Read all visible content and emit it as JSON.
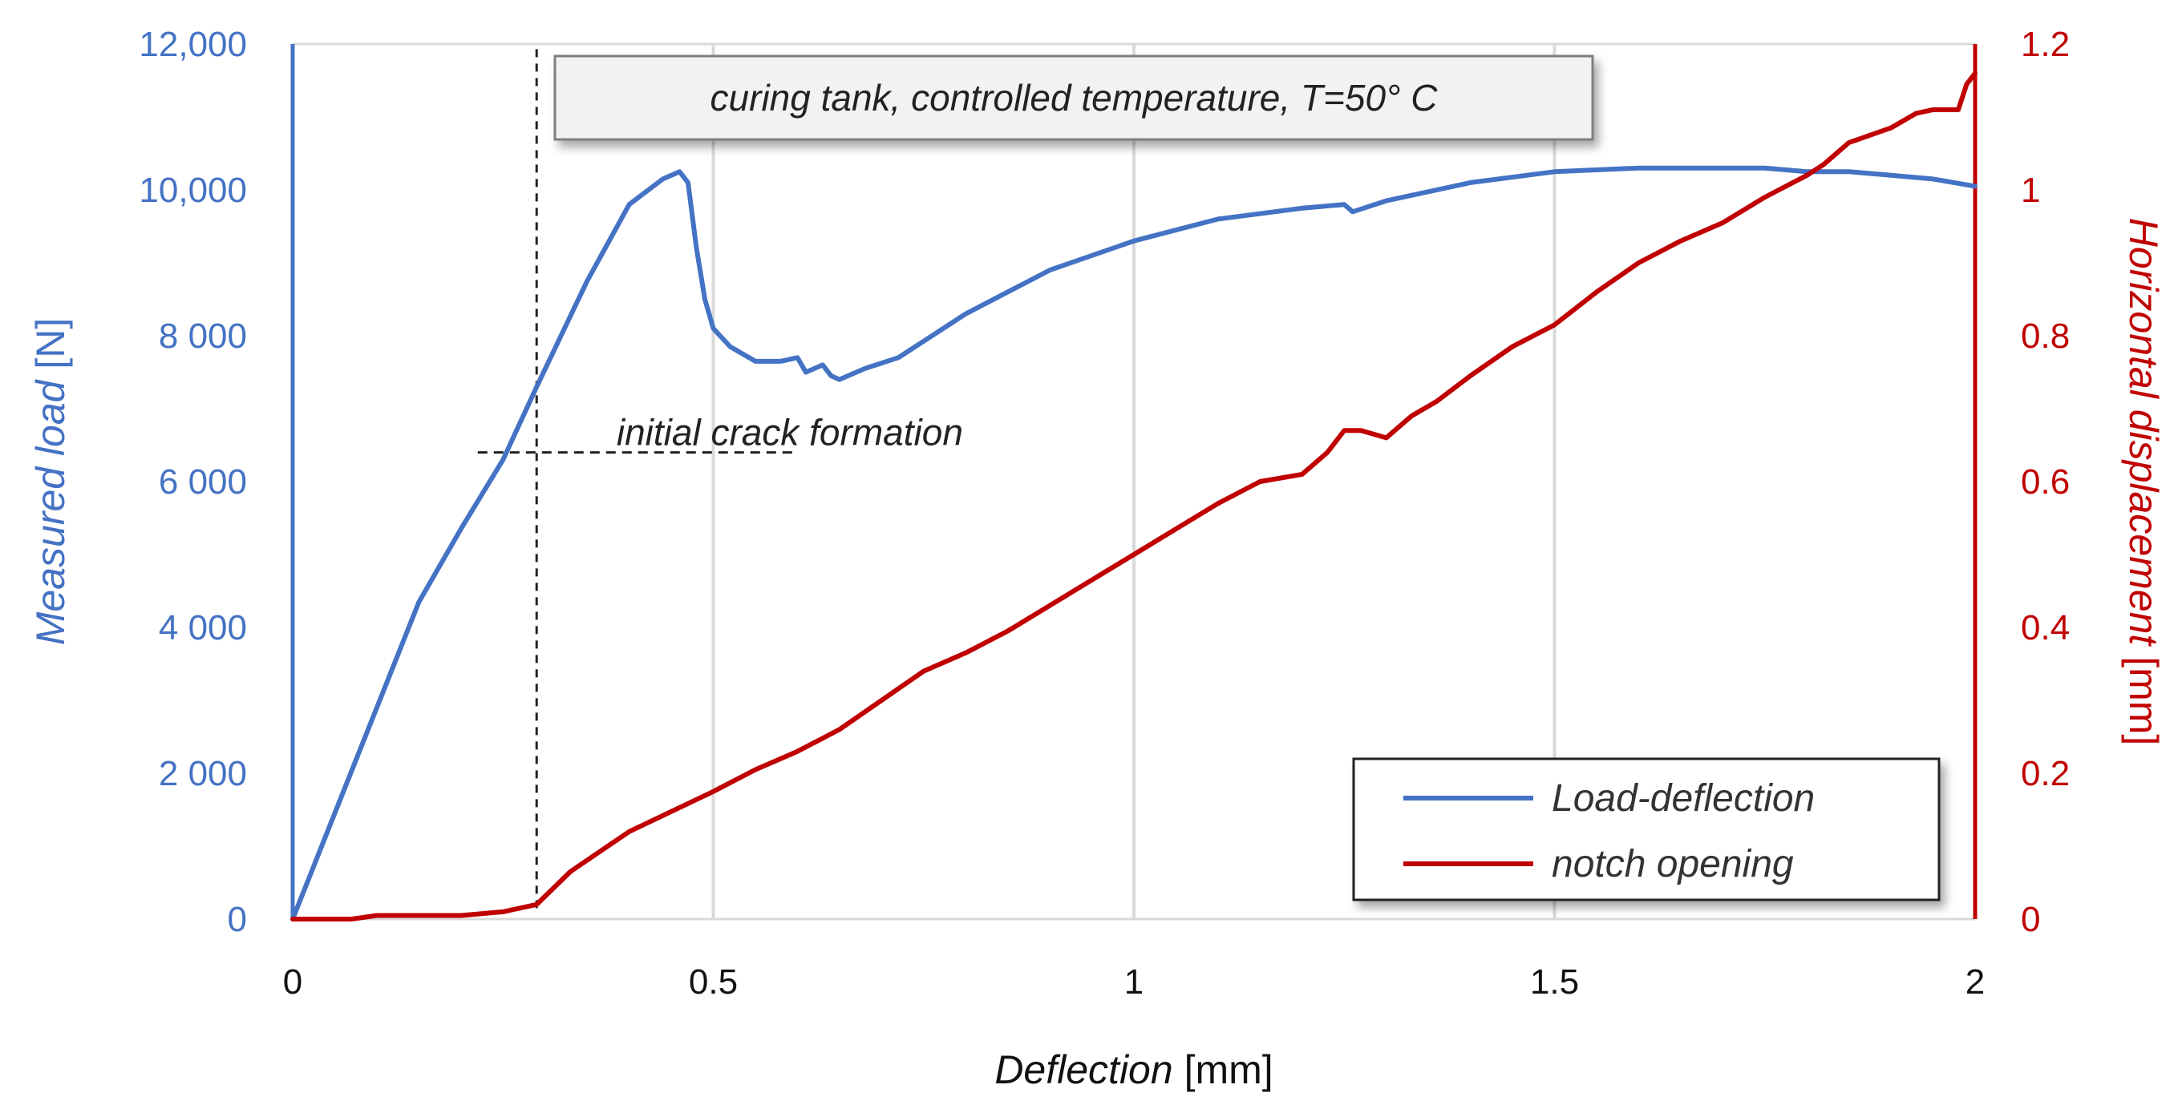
{
  "chart_data": {
    "type": "line",
    "title": "",
    "x": {
      "label_italic": "Deflection",
      "label_unit": " [mm]",
      "range": [
        0,
        2
      ],
      "ticks": [
        0,
        0.5,
        1,
        1.5,
        2
      ],
      "tick_labels": [
        "0",
        "0.5",
        "1",
        "1.5",
        "2"
      ]
    },
    "y_left": {
      "label_italic": "Measured load",
      "label_unit": " [N]",
      "range": [
        0,
        12000
      ],
      "ticks": [
        0,
        2000,
        4000,
        6000,
        8000,
        10000,
        12000
      ],
      "tick_labels": [
        "0",
        "2 000",
        "4 000",
        "6 000",
        "8 000",
        "10,000",
        "12,000"
      ],
      "color": "#4472C4"
    },
    "y_right": {
      "label_italic": "Horizontal displacement",
      "label_unit": " [mm]",
      "range": [
        0,
        1.2
      ],
      "ticks": [
        0,
        0.2,
        0.4,
        0.6,
        0.8,
        1,
        1.2
      ],
      "tick_labels": [
        "0",
        "0.2",
        "0.4",
        "0.6",
        "0.8",
        "1",
        "1.2"
      ],
      "color": "#C00000"
    },
    "grid": "vertical",
    "series": [
      {
        "name": "Load-deflection",
        "axis": "left",
        "color": "#4472C4",
        "x": [
          0,
          0.05,
          0.1,
          0.15,
          0.2,
          0.25,
          0.29,
          0.35,
          0.4,
          0.44,
          0.46,
          0.47,
          0.48,
          0.49,
          0.5,
          0.52,
          0.55,
          0.58,
          0.6,
          0.61,
          0.62,
          0.63,
          0.64,
          0.65,
          0.68,
          0.72,
          0.8,
          0.9,
          1.0,
          1.1,
          1.2,
          1.25,
          1.26,
          1.3,
          1.4,
          1.5,
          1.6,
          1.7,
          1.75,
          1.8,
          1.85,
          1.9,
          1.95,
          2.0
        ],
        "y": [
          0,
          1450,
          2900,
          4350,
          5350,
          6300,
          7300,
          8750,
          9800,
          10150,
          10250,
          10100,
          9200,
          8500,
          8100,
          7850,
          7650,
          7650,
          7700,
          7500,
          7550,
          7600,
          7450,
          7400,
          7550,
          7700,
          8300,
          8900,
          9300,
          9600,
          9750,
          9800,
          9700,
          9850,
          10100,
          10250,
          10300,
          10300,
          10300,
          10250,
          10250,
          10200,
          10150,
          10050
        ]
      },
      {
        "name": "notch opening",
        "axis": "right",
        "color": "#C00000",
        "x": [
          0,
          0.07,
          0.1,
          0.13,
          0.17,
          0.2,
          0.25,
          0.29,
          0.33,
          0.4,
          0.5,
          0.55,
          0.6,
          0.65,
          0.7,
          0.75,
          0.8,
          0.85,
          0.9,
          0.95,
          1.0,
          1.05,
          1.1,
          1.15,
          1.2,
          1.23,
          1.25,
          1.27,
          1.3,
          1.33,
          1.36,
          1.4,
          1.45,
          1.5,
          1.55,
          1.6,
          1.65,
          1.7,
          1.75,
          1.8,
          1.82,
          1.85,
          1.9,
          1.93,
          1.95,
          1.98,
          1.99,
          2.0
        ],
        "y": [
          0,
          0,
          0.005,
          0.005,
          0.005,
          0.005,
          0.01,
          0.02,
          0.065,
          0.12,
          0.175,
          0.205,
          0.23,
          0.26,
          0.3,
          0.34,
          0.365,
          0.395,
          0.43,
          0.465,
          0.5,
          0.535,
          0.57,
          0.6,
          0.61,
          0.64,
          0.67,
          0.67,
          0.66,
          0.69,
          0.71,
          0.745,
          0.785,
          0.815,
          0.86,
          0.9,
          0.93,
          0.955,
          0.99,
          1.02,
          1.035,
          1.065,
          1.085,
          1.105,
          1.11,
          1.11,
          1.145,
          1.16
        ]
      }
    ],
    "annotations": [
      {
        "type": "vline",
        "x": 0.29,
        "y_from": 150,
        "y_to": 12000,
        "style": "dashed"
      },
      {
        "type": "hline",
        "y": 6400,
        "x_from": 0.22,
        "x_to": 0.6,
        "style": "dashed"
      },
      {
        "type": "text",
        "text": "initial crack formation",
        "x": 0.385,
        "y": 6500
      },
      {
        "type": "textbox",
        "text": "curing tank, controlled temperature, T=50° C",
        "position": "top-left"
      }
    ],
    "legend": {
      "position": "bottom-right",
      "entries": [
        "Load-deflection",
        "notch opening"
      ]
    }
  }
}
